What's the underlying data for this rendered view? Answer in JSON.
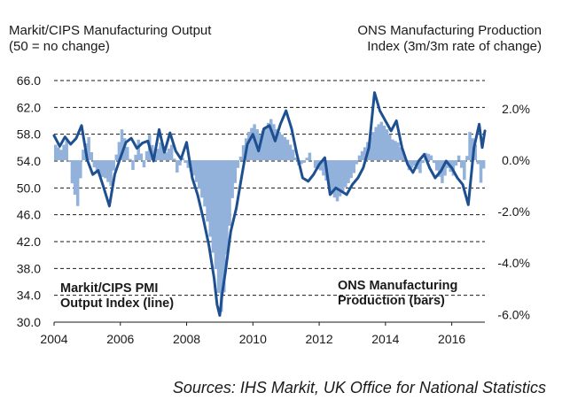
{
  "chart_data": {
    "type": "bar+line",
    "title_left": "Markit/CIPS Manufacturing Output\n(50 = no change)",
    "title_right": "ONS Manufacturing Production\nIndex (3m/3m rate of change)",
    "x_ticks": [
      "2004",
      "2006",
      "2008",
      "2010",
      "2012",
      "2014",
      "2016"
    ],
    "x_range": [
      2004,
      2017
    ],
    "left_axis": {
      "ylim": [
        30.0,
        66.0
      ],
      "ticks": [
        "30.0",
        "34.0",
        "38.0",
        "42.0",
        "46.0",
        "50.0",
        "54.0",
        "58.0",
        "62.0",
        "66.0"
      ],
      "tick_values": [
        30,
        34,
        38,
        42,
        46,
        50,
        54,
        58,
        62,
        66
      ]
    },
    "right_axis": {
      "ylim": [
        -6.3,
        3.1
      ],
      "ticks": [
        "-6.0%",
        "-4.0%",
        "-2.0%",
        "0.0%",
        "2.0%"
      ],
      "tick_values": [
        -6,
        -4,
        -2,
        0,
        2
      ]
    },
    "series": [
      {
        "name": "Markit/CIPS PMI Output Index (line)",
        "axis": "left",
        "color": "#1d4f91",
        "points": [
          [
            2004.0,
            57.8
          ],
          [
            2004.17,
            56.2
          ],
          [
            2004.33,
            57.6
          ],
          [
            2004.5,
            56.5
          ],
          [
            2004.67,
            57.4
          ],
          [
            2004.83,
            59.3
          ],
          [
            2005.0,
            54.2
          ],
          [
            2005.17,
            52.0
          ],
          [
            2005.33,
            52.6
          ],
          [
            2005.5,
            50.0
          ],
          [
            2005.67,
            47.3
          ],
          [
            2005.83,
            52.0
          ],
          [
            2006.0,
            54.5
          ],
          [
            2006.17,
            56.8
          ],
          [
            2006.33,
            57.4
          ],
          [
            2006.5,
            55.9
          ],
          [
            2006.67,
            56.7
          ],
          [
            2006.83,
            57.0
          ],
          [
            2007.0,
            54.0
          ],
          [
            2007.17,
            58.7
          ],
          [
            2007.33,
            55.3
          ],
          [
            2007.5,
            58.2
          ],
          [
            2007.67,
            55.5
          ],
          [
            2007.83,
            54.3
          ],
          [
            2008.0,
            56.8
          ],
          [
            2008.17,
            51.5
          ],
          [
            2008.33,
            49.0
          ],
          [
            2008.5,
            45.5
          ],
          [
            2008.67,
            41.5
          ],
          [
            2008.83,
            36.5
          ],
          [
            2008.92,
            32.6
          ],
          [
            2009.0,
            31.0
          ],
          [
            2009.08,
            34.5
          ],
          [
            2009.17,
            37.5
          ],
          [
            2009.33,
            43.5
          ],
          [
            2009.5,
            47.0
          ],
          [
            2009.67,
            52.0
          ],
          [
            2009.83,
            56.5
          ],
          [
            2010.0,
            58.0
          ],
          [
            2010.17,
            55.5
          ],
          [
            2010.33,
            58.8
          ],
          [
            2010.5,
            59.3
          ],
          [
            2010.67,
            57.0
          ],
          [
            2010.83,
            59.5
          ],
          [
            2011.0,
            61.5
          ],
          [
            2011.17,
            58.8
          ],
          [
            2011.33,
            55.0
          ],
          [
            2011.5,
            51.5
          ],
          [
            2011.67,
            51.0
          ],
          [
            2011.83,
            52.0
          ],
          [
            2012.0,
            53.5
          ],
          [
            2012.17,
            54.5
          ],
          [
            2012.33,
            49.0
          ],
          [
            2012.5,
            50.0
          ],
          [
            2012.67,
            49.5
          ],
          [
            2012.83,
            49.0
          ],
          [
            2013.0,
            50.5
          ],
          [
            2013.17,
            51.5
          ],
          [
            2013.33,
            53.0
          ],
          [
            2013.5,
            56.0
          ],
          [
            2013.67,
            64.2
          ],
          [
            2013.83,
            61.5
          ],
          [
            2014.0,
            60.0
          ],
          [
            2014.17,
            58.5
          ],
          [
            2014.33,
            60.0
          ],
          [
            2014.5,
            56.0
          ],
          [
            2014.67,
            53.5
          ],
          [
            2014.83,
            52.3
          ],
          [
            2015.0,
            54.0
          ],
          [
            2015.17,
            55.0
          ],
          [
            2015.33,
            53.0
          ],
          [
            2015.5,
            51.5
          ],
          [
            2015.67,
            52.5
          ],
          [
            2015.83,
            54.0
          ],
          [
            2016.0,
            53.0
          ],
          [
            2016.17,
            51.5
          ],
          [
            2016.33,
            50.5
          ],
          [
            2016.5,
            47.5
          ],
          [
            2016.67,
            56.0
          ],
          [
            2016.83,
            59.5
          ],
          [
            2016.92,
            56.0
          ],
          [
            2017.0,
            58.5
          ]
        ]
      },
      {
        "name": "ONS Manufacturing Production (bars)",
        "axis": "right",
        "color": "#92b2db",
        "points": [
          [
            2004.0,
            0.6
          ],
          [
            2004.17,
            0.4
          ],
          [
            2004.33,
            0.8
          ],
          [
            2004.5,
            -0.9
          ],
          [
            2004.67,
            -1.8
          ],
          [
            2004.83,
            0.4
          ],
          [
            2005.0,
            0.9
          ],
          [
            2005.17,
            -0.3
          ],
          [
            2005.33,
            -0.6
          ],
          [
            2005.5,
            -0.7
          ],
          [
            2005.67,
            -1.0
          ],
          [
            2005.83,
            0.2
          ],
          [
            2006.0,
            1.2
          ],
          [
            2006.17,
            0.5
          ],
          [
            2006.33,
            -0.4
          ],
          [
            2006.5,
            0.8
          ],
          [
            2006.67,
            -0.3
          ],
          [
            2006.83,
            1.0
          ],
          [
            2007.0,
            0.2
          ],
          [
            2007.17,
            0.7
          ],
          [
            2007.33,
            0.3
          ],
          [
            2007.5,
            0.6
          ],
          [
            2007.67,
            -0.5
          ],
          [
            2007.83,
            0.1
          ],
          [
            2008.0,
            -0.3
          ],
          [
            2008.17,
            -0.6
          ],
          [
            2008.33,
            -1.1
          ],
          [
            2008.5,
            -1.8
          ],
          [
            2008.67,
            -3.0
          ],
          [
            2008.83,
            -4.2
          ],
          [
            2008.92,
            -5.2
          ],
          [
            2009.0,
            -5.9
          ],
          [
            2009.08,
            -5.2
          ],
          [
            2009.17,
            -3.6
          ],
          [
            2009.33,
            -1.5
          ],
          [
            2009.5,
            -0.3
          ],
          [
            2009.67,
            0.6
          ],
          [
            2009.83,
            1.1
          ],
          [
            2010.0,
            1.4
          ],
          [
            2010.17,
            1.0
          ],
          [
            2010.33,
            1.3
          ],
          [
            2010.5,
            1.6
          ],
          [
            2010.67,
            1.2
          ],
          [
            2010.83,
            1.0
          ],
          [
            2011.0,
            0.8
          ],
          [
            2011.17,
            0.4
          ],
          [
            2011.33,
            -0.2
          ],
          [
            2011.5,
            -0.1
          ],
          [
            2011.67,
            0.3
          ],
          [
            2011.83,
            -0.3
          ],
          [
            2012.0,
            -0.4
          ],
          [
            2012.17,
            -0.8
          ],
          [
            2012.33,
            -1.3
          ],
          [
            2012.5,
            -1.6
          ],
          [
            2012.67,
            -1.2
          ],
          [
            2012.83,
            -0.9
          ],
          [
            2013.0,
            -0.5
          ],
          [
            2013.17,
            0.2
          ],
          [
            2013.33,
            0.5
          ],
          [
            2013.5,
            0.9
          ],
          [
            2013.67,
            1.3
          ],
          [
            2013.83,
            1.5
          ],
          [
            2014.0,
            1.2
          ],
          [
            2014.17,
            0.8
          ],
          [
            2014.33,
            0.7
          ],
          [
            2014.5,
            0.3
          ],
          [
            2014.67,
            -0.4
          ],
          [
            2014.83,
            -0.2
          ],
          [
            2015.0,
            -0.5
          ],
          [
            2015.17,
            0.3
          ],
          [
            2015.33,
            0.2
          ],
          [
            2015.5,
            -0.4
          ],
          [
            2015.67,
            -0.9
          ],
          [
            2015.83,
            -0.3
          ],
          [
            2016.0,
            -0.6
          ],
          [
            2016.17,
            0.2
          ],
          [
            2016.33,
            -0.8
          ],
          [
            2016.5,
            1.1
          ],
          [
            2016.67,
            0.6
          ],
          [
            2016.83,
            -0.9
          ],
          [
            2016.92,
            -0.3
          ],
          [
            2017.0,
            0.2
          ]
        ]
      }
    ],
    "annotations": {
      "line_label": "Markit/CIPS PMI\nOutput Index (line)",
      "bar_label": "ONS Manufacturing\nProduction (bars)"
    },
    "source": "Sources: IHS Markit, UK Office for National Statistics",
    "grid": "horizontal dashed",
    "colors": {
      "line": "#1d4f91",
      "bars": "#92b2db",
      "grid": "#1a1a1a"
    }
  }
}
